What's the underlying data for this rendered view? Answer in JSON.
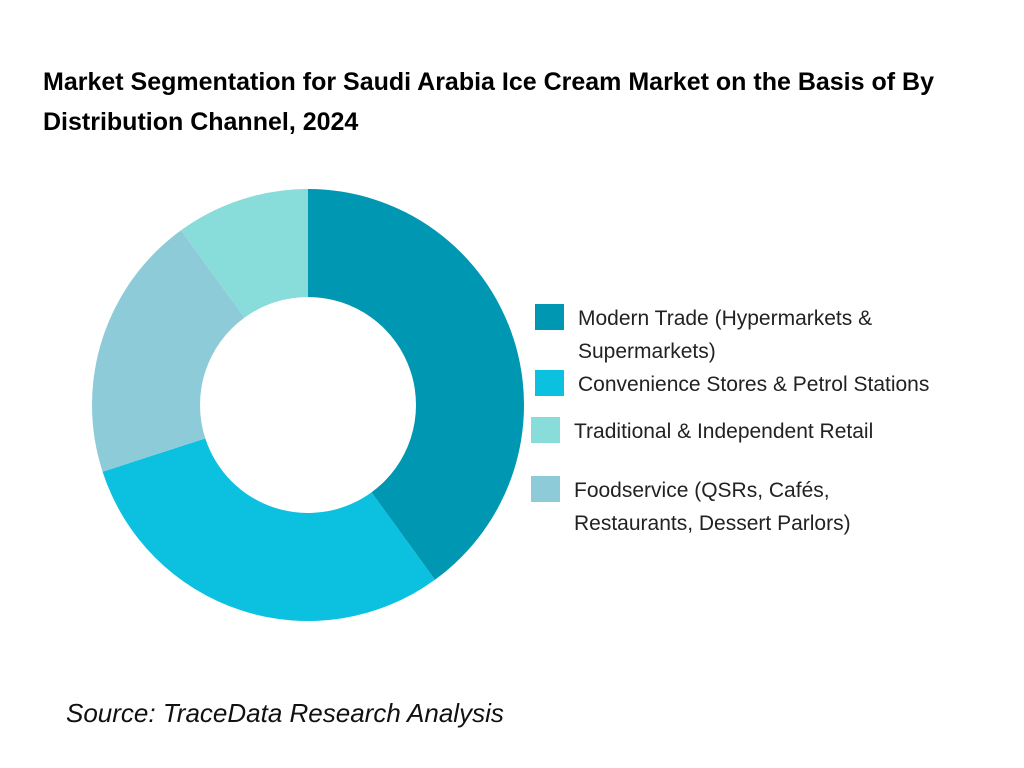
{
  "title": "Market Segmentation for Saudi Arabia Ice Cream Market on the Basis of  By Distribution Channel, 2024",
  "source": "Source: TraceData Research Analysis",
  "chart_data": {
    "type": "pie",
    "donut": true,
    "legend_position": "right",
    "slices": [
      {
        "label": "Modern Trade (Hypermarkets & Supermarkets)",
        "value": 40,
        "color": "#0097b2"
      },
      {
        "label": "Convenience Stores & Petrol Stations",
        "value": 30,
        "color": "#0cc0df"
      },
      {
        "label": "Foodservice (QSRs, Cafés, Restaurants, Dessert Parlors)",
        "value": 20,
        "color": "#8ecbd8"
      },
      {
        "label": "Traditional & Independent Retail",
        "value": 10,
        "color": "#88dcd9"
      }
    ],
    "legend": [
      {
        "label": "Modern Trade (Hypermarkets & Supermarkets)",
        "color": "#0097b2"
      },
      {
        "label": "Convenience Stores & Petrol Stations",
        "color": "#0cc0df"
      },
      {
        "label": "Traditional & Independent Retail",
        "color": "#88dcd9"
      },
      {
        "label": "Foodservice (QSRs, Cafés, Restaurants, Dessert Parlors)",
        "color": "#8ecbd8"
      }
    ]
  }
}
